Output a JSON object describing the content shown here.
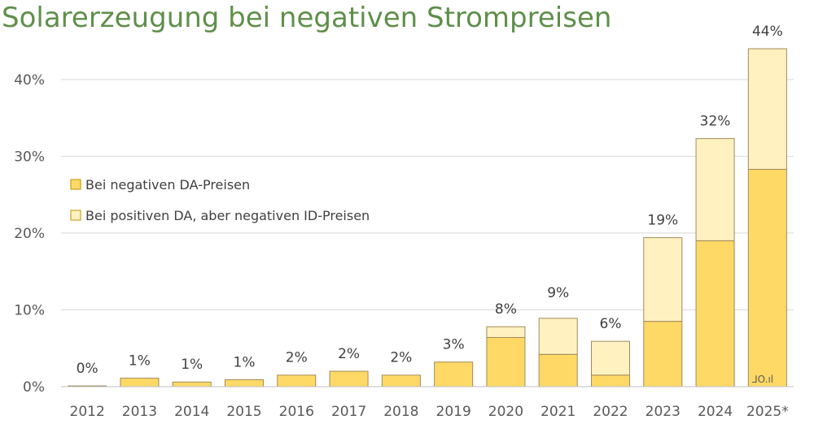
{
  "chart_data": {
    "type": "bar",
    "stacked": true,
    "title": "Solarerzeugung bei negativen Strompreisen",
    "xlabel": "",
    "ylabel": "",
    "ylim": [
      0,
      44
    ],
    "yticks": [
      0,
      10,
      20,
      30,
      40
    ],
    "ytick_labels": [
      "0%",
      "10%",
      "20%",
      "30%",
      "40%"
    ],
    "grid": true,
    "legend_position": "center-left",
    "categories": [
      "2012",
      "2013",
      "2014",
      "2015",
      "2016",
      "2017",
      "2018",
      "2019",
      "2020",
      "2021",
      "2022",
      "2023",
      "2024",
      "2025*"
    ],
    "series": [
      {
        "name": "Bei negativen DA-Preisen",
        "color": "#ffd966",
        "values": [
          0.1,
          1.1,
          0.6,
          0.9,
          1.5,
          2.0,
          1.5,
          3.2,
          6.4,
          4.2,
          1.5,
          8.5,
          19.0,
          28.3
        ]
      },
      {
        "name": "Bei positiven DA, aber negativen ID-Preisen",
        "color": "#fff2c0",
        "values": [
          0.0,
          0.0,
          0.0,
          0.0,
          0.0,
          0.0,
          0.0,
          0.0,
          1.4,
          4.7,
          4.4,
          10.9,
          13.3,
          15.7
        ]
      }
    ],
    "data_labels": [
      "0%",
      "1%",
      "1%",
      "1%",
      "2%",
      "2%",
      "2%",
      "3%",
      "8%",
      "9%",
      "6%",
      "19%",
      "32%",
      "44%"
    ],
    "label_offsets": [
      1.5,
      1.5,
      1.5,
      1.5,
      1.5,
      1.5,
      1.5,
      1.5,
      1.5,
      2.5,
      1.5,
      1.5,
      1.5,
      1.5
    ]
  },
  "watermark": {
    "text": "⅃O.ıl"
  }
}
